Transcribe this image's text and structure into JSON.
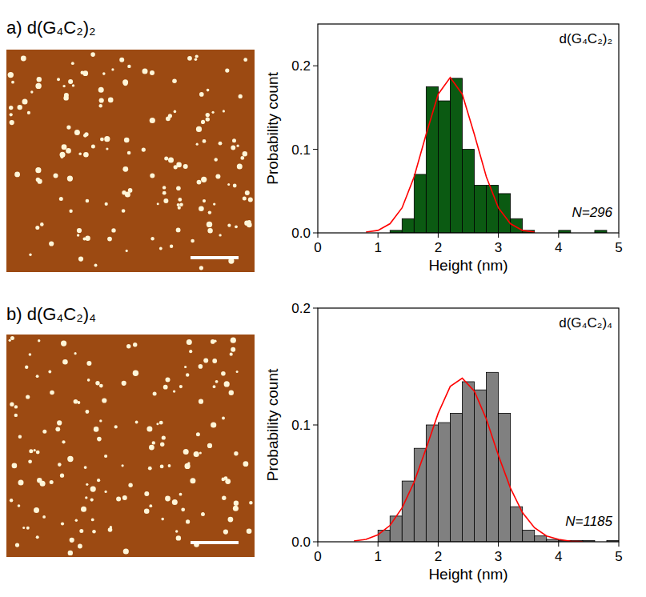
{
  "chart_data": [
    {
      "type": "histogram",
      "title": "a) d(G₄C₂)₂",
      "x_label": "Height (nm)",
      "y_label": "Probability count",
      "annotations": [
        "d(G₄C₂)₂",
        "N=296"
      ],
      "color": "#0b5a12",
      "bins": [
        1.2,
        1.4,
        1.6,
        1.8,
        2.0,
        2.2,
        2.4,
        2.6,
        2.8,
        3.0,
        3.2,
        3.4,
        3.6,
        3.8,
        4.0,
        4.2,
        4.4,
        4.6,
        4.8
      ],
      "values": [
        0.003,
        0.017,
        0.07,
        0.175,
        0.158,
        0.185,
        0.1,
        0.057,
        0.057,
        0.047,
        0.017,
        0.003,
        0,
        0,
        0.003,
        0,
        0,
        0.003
      ],
      "series": [
        {
          "type": "line",
          "color": "#ff0000",
          "x": [
            0.8,
            1.0,
            1.2,
            1.4,
            1.6,
            1.8,
            2.0,
            2.2,
            2.4,
            2.6,
            2.8,
            3.0,
            3.2,
            3.4,
            3.6
          ],
          "values": [
            0.001,
            0.003,
            0.011,
            0.03,
            0.067,
            0.118,
            0.166,
            0.186,
            0.166,
            0.118,
            0.067,
            0.03,
            0.011,
            0.003,
            0.001
          ]
        }
      ],
      "xlim": [
        0,
        5
      ],
      "xticks": [
        0,
        1,
        2,
        3,
        4,
        5
      ],
      "ylim": [
        0,
        0.25
      ],
      "yticks": [
        {
          "value": 0,
          "label": "0.0"
        },
        0.1,
        0.2
      ]
    },
    {
      "type": "histogram",
      "title": "b) d(G₄C₂)₄",
      "x_label": "Height (nm)",
      "y_label": "Probability count",
      "annotations": [
        "d(G₄C₂)₄",
        "N=1185"
      ],
      "color": "#808080",
      "bins": [
        1.0,
        1.2,
        1.4,
        1.6,
        1.8,
        2.0,
        2.2,
        2.4,
        2.6,
        2.8,
        3.0,
        3.2,
        3.4,
        3.6,
        3.8,
        4.0,
        4.2,
        4.4,
        4.6,
        4.8,
        5.0
      ],
      "values": [
        0.01,
        0.022,
        0.052,
        0.08,
        0.1,
        0.102,
        0.11,
        0.137,
        0.13,
        0.145,
        0.11,
        0.03,
        0.01,
        0.005,
        0.002,
        0.001,
        0.001,
        0.001,
        0,
        0.001
      ],
      "series": [
        {
          "type": "line",
          "color": "#ff0000",
          "x": [
            0.6,
            0.8,
            1.0,
            1.2,
            1.4,
            1.6,
            1.8,
            2.0,
            2.2,
            2.4,
            2.6,
            2.8,
            3.0,
            3.2,
            3.4,
            3.6,
            3.8,
            4.0,
            4.2,
            4.4
          ],
          "values": [
            0.0007,
            0.002,
            0.006,
            0.014,
            0.029,
            0.051,
            0.08,
            0.11,
            0.133,
            0.14,
            0.129,
            0.105,
            0.074,
            0.046,
            0.025,
            0.012,
            0.005,
            0.002,
            0.0005,
            0.0001
          ]
        }
      ],
      "xlim": [
        0,
        5
      ],
      "xticks": [
        0,
        1,
        2,
        3,
        4,
        5
      ],
      "ylim": [
        0,
        0.2
      ],
      "yticks": [
        {
          "value": 0,
          "label": "0.0"
        },
        0.1,
        0.2
      ]
    }
  ]
}
